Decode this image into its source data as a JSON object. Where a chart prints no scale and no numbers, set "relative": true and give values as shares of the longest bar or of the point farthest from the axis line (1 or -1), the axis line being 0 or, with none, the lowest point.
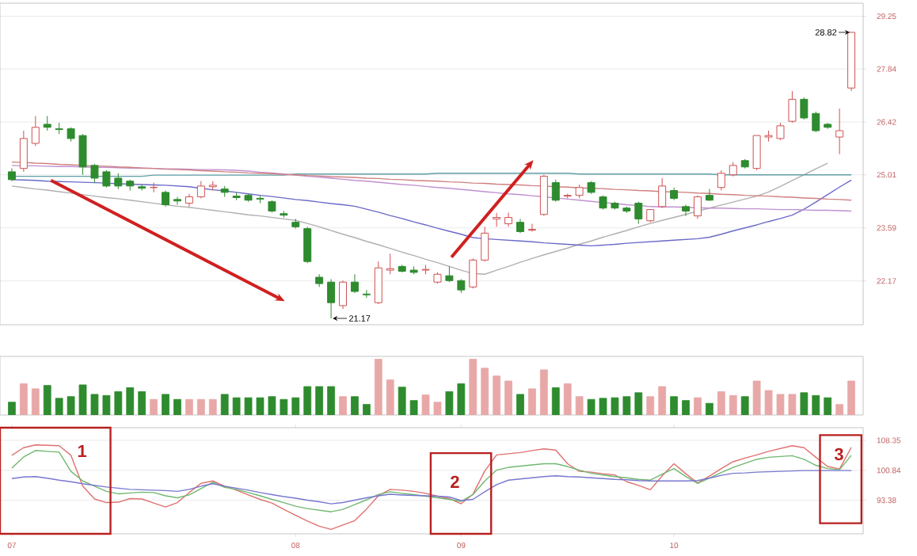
{
  "chart_data": [
    {
      "type": "candlestick",
      "categories": [
        "07",
        null,
        null,
        null,
        null,
        null,
        null,
        null,
        null,
        null,
        null,
        null,
        null,
        null,
        null,
        null,
        null,
        null,
        null,
        null,
        null,
        null,
        null,
        null,
        "08",
        null,
        null,
        null,
        null,
        null,
        null,
        null,
        null,
        null,
        null,
        null,
        null,
        null,
        "09",
        null,
        null,
        null,
        null,
        null,
        null,
        null,
        null,
        null,
        null,
        null,
        null,
        null,
        null,
        null,
        null,
        null,
        "10",
        null,
        null,
        null,
        null,
        null,
        null,
        null,
        null,
        null,
        null,
        null,
        null,
        null,
        null,
        null
      ],
      "ohlc": [
        [
          25.09,
          25.18,
          24.84,
          24.88
        ],
        [
          25.18,
          26.19,
          25.09,
          25.98
        ],
        [
          25.85,
          26.58,
          25.78,
          26.28
        ],
        [
          26.36,
          26.58,
          26.19,
          26.28
        ],
        [
          26.24,
          26.4,
          26.1,
          26.22
        ],
        [
          26.24,
          26.28,
          25.9,
          25.98
        ],
        [
          26.06,
          26.1,
          25.01,
          25.22
        ],
        [
          25.26,
          25.3,
          24.8,
          24.92
        ],
        [
          25.09,
          25.13,
          24.67,
          24.71
        ],
        [
          24.92,
          25.05,
          24.63,
          24.71
        ],
        [
          24.84,
          24.88,
          24.59,
          24.71
        ],
        [
          24.69,
          24.75,
          24.59,
          24.65
        ],
        [
          24.67,
          24.8,
          24.54,
          24.67
        ],
        [
          24.54,
          24.59,
          24.16,
          24.21
        ],
        [
          24.35,
          24.42,
          24.21,
          24.31
        ],
        [
          24.25,
          24.5,
          24.16,
          24.42
        ],
        [
          24.42,
          24.84,
          24.38,
          24.71
        ],
        [
          24.69,
          24.84,
          24.59,
          24.73
        ],
        [
          24.63,
          24.71,
          24.42,
          24.54
        ],
        [
          24.44,
          24.54,
          24.33,
          24.4
        ],
        [
          24.46,
          24.5,
          24.29,
          24.33
        ],
        [
          24.38,
          24.46,
          24.25,
          24.36
        ],
        [
          24.29,
          24.33,
          24.0,
          24.04
        ],
        [
          23.97,
          24.04,
          23.87,
          23.93
        ],
        [
          23.74,
          23.83,
          23.57,
          23.62
        ],
        [
          23.57,
          23.62,
          22.65,
          22.69
        ],
        [
          22.27,
          22.35,
          22.01,
          22.1
        ],
        [
          22.14,
          22.22,
          21.17,
          21.59
        ],
        [
          21.51,
          22.18,
          21.42,
          22.14
        ],
        [
          22.14,
          22.35,
          21.85,
          21.89
        ],
        [
          21.82,
          21.93,
          21.72,
          21.8
        ],
        [
          21.59,
          22.69,
          21.55,
          22.52
        ],
        [
          22.46,
          22.9,
          22.35,
          22.5
        ],
        [
          22.56,
          22.6,
          22.4,
          22.43
        ],
        [
          22.46,
          22.56,
          22.35,
          22.4
        ],
        [
          22.46,
          22.6,
          22.35,
          22.48
        ],
        [
          22.14,
          22.4,
          22.1,
          22.35
        ],
        [
          22.31,
          22.56,
          22.14,
          22.18
        ],
        [
          22.18,
          22.22,
          21.85,
          21.93
        ],
        [
          22.01,
          22.77,
          21.97,
          22.73
        ],
        [
          22.73,
          23.62,
          22.69,
          23.45
        ],
        [
          23.83,
          23.99,
          23.62,
          23.87
        ],
        [
          23.7,
          24.0,
          23.62,
          23.87
        ],
        [
          23.74,
          23.83,
          23.45,
          23.49
        ],
        [
          23.53,
          23.7,
          23.49,
          23.55
        ],
        [
          23.95,
          25.01,
          23.91,
          24.97
        ],
        [
          24.8,
          24.88,
          24.29,
          24.33
        ],
        [
          24.44,
          24.5,
          24.38,
          24.46
        ],
        [
          24.46,
          24.75,
          24.38,
          24.67
        ],
        [
          24.8,
          24.84,
          24.5,
          24.54
        ],
        [
          24.42,
          24.46,
          24.08,
          24.12
        ],
        [
          24.25,
          24.29,
          24.08,
          24.12
        ],
        [
          24.12,
          24.16,
          23.99,
          24.04
        ],
        [
          24.25,
          24.29,
          23.7,
          23.83
        ],
        [
          23.78,
          24.08,
          23.74,
          24.08
        ],
        [
          24.16,
          24.92,
          24.12,
          24.71
        ],
        [
          24.59,
          24.67,
          24.33,
          24.38
        ],
        [
          24.16,
          24.21,
          23.91,
          24.04
        ],
        [
          23.91,
          24.46,
          23.83,
          24.42
        ],
        [
          24.46,
          24.63,
          24.31,
          24.33
        ],
        [
          24.67,
          25.13,
          24.59,
          25.05
        ],
        [
          25.01,
          25.35,
          24.97,
          25.26
        ],
        [
          25.39,
          25.43,
          25.18,
          25.22
        ],
        [
          25.18,
          26.06,
          25.13,
          26.06
        ],
        [
          26.02,
          26.19,
          25.9,
          26.06
        ],
        [
          25.98,
          26.4,
          25.94,
          26.32
        ],
        [
          26.44,
          27.25,
          26.4,
          27.03
        ],
        [
          27.03,
          27.08,
          26.49,
          26.53
        ],
        [
          26.65,
          26.7,
          26.15,
          26.19
        ],
        [
          26.36,
          26.4,
          26.24,
          26.28
        ],
        [
          26.02,
          26.78,
          25.56,
          26.19
        ],
        [
          27.33,
          28.82,
          27.25,
          28.82
        ]
      ],
      "series": [
        {
          "type": "line",
          "color": "#b0b0b0",
          "values": [
            24.71,
            24.67,
            24.63,
            24.6,
            24.56,
            24.52,
            24.48,
            24.44,
            24.4,
            24.37,
            24.33,
            24.29,
            24.25,
            24.21,
            24.17,
            24.14,
            24.1,
            24.06,
            24.02,
            23.98,
            23.94,
            23.91,
            23.87,
            23.83,
            23.79,
            23.71,
            23.62,
            23.52,
            23.42,
            23.33,
            23.23,
            23.14,
            23.04,
            22.94,
            22.85,
            22.75,
            22.66,
            22.56,
            22.46,
            22.37,
            22.35,
            22.46,
            22.56,
            22.67,
            22.77,
            22.87,
            22.96,
            23.05,
            23.15,
            23.24,
            23.34,
            23.43,
            23.52,
            23.62,
            23.71,
            23.79,
            23.87,
            23.95,
            24.04,
            24.12,
            24.2,
            24.28,
            24.36,
            24.44,
            24.55,
            24.7,
            24.86,
            25.01,
            25.17,
            25.32,
            null,
            null
          ]
        },
        {
          "type": "line",
          "color": "#6a6ac8",
          "values": [
            24.88,
            24.87,
            24.86,
            24.84,
            24.83,
            24.82,
            24.81,
            24.8,
            24.79,
            24.77,
            24.76,
            24.75,
            24.74,
            24.73,
            24.71,
            24.69,
            24.65,
            24.61,
            24.58,
            24.54,
            24.5,
            24.46,
            24.43,
            24.39,
            24.35,
            24.32,
            24.28,
            24.24,
            24.21,
            24.17,
            24.09,
            24.01,
            23.92,
            23.84,
            23.75,
            23.67,
            23.58,
            23.5,
            23.42,
            23.33,
            23.3,
            23.28,
            23.26,
            23.24,
            23.22,
            23.19,
            23.17,
            23.15,
            23.13,
            23.11,
            23.13,
            23.15,
            23.18,
            23.2,
            23.22,
            23.24,
            23.26,
            23.28,
            23.3,
            23.34,
            23.42,
            23.51,
            23.59,
            23.67,
            23.76,
            23.84,
            23.93,
            24.09,
            24.28,
            24.48,
            24.68,
            24.87
          ]
        },
        {
          "type": "line",
          "color": "#c090d0",
          "values": [
            25.26,
            25.25,
            25.25,
            25.24,
            25.23,
            25.23,
            25.22,
            25.21,
            25.21,
            25.2,
            25.19,
            25.19,
            25.18,
            25.17,
            25.17,
            25.16,
            25.15,
            25.15,
            25.14,
            25.13,
            25.11,
            25.08,
            25.06,
            25.03,
            25.0,
            24.97,
            24.95,
            24.92,
            24.89,
            24.86,
            24.84,
            24.81,
            24.78,
            24.75,
            24.73,
            24.7,
            24.67,
            24.65,
            24.62,
            24.59,
            24.56,
            24.53,
            24.5,
            24.48,
            24.45,
            24.42,
            24.39,
            24.36,
            24.33,
            24.3,
            24.27,
            24.24,
            24.21,
            24.19,
            24.16,
            24.15,
            24.15,
            24.14,
            24.13,
            24.12,
            24.12,
            24.11,
            24.1,
            24.1,
            24.09,
            24.08,
            24.08,
            24.07,
            24.06,
            24.06,
            24.05,
            24.04
          ]
        },
        {
          "type": "line",
          "color": "#60a0a8",
          "values": [
            24.97,
            24.97,
            24.97,
            24.97,
            24.97,
            24.97,
            24.97,
            24.97,
            24.97,
            24.97,
            24.97,
            24.97,
            25.0,
            25.0,
            25.0,
            25.0,
            25.0,
            25.0,
            25.0,
            25.0,
            25.0,
            25.0,
            25.0,
            25.0,
            25.03,
            25.03,
            25.03,
            25.03,
            25.03,
            25.03,
            25.03,
            25.03,
            25.03,
            25.03,
            25.03,
            25.03,
            25.05,
            25.05,
            25.05,
            25.05,
            25.05,
            25.05,
            25.05,
            25.05,
            25.05,
            25.05,
            25.05,
            25.05,
            25.03,
            25.03,
            25.03,
            25.03,
            25.03,
            25.03,
            25.03,
            25.03,
            25.03,
            25.03,
            25.03,
            25.03,
            25.01,
            25.01,
            25.01,
            25.01,
            25.01,
            25.01,
            25.01,
            25.01,
            25.01,
            25.01,
            25.01,
            25.01
          ]
        },
        {
          "type": "line",
          "color": "#d08080",
          "values": [
            25.35,
            25.34,
            25.32,
            25.31,
            25.29,
            25.28,
            25.26,
            25.25,
            25.24,
            25.22,
            25.21,
            25.19,
            25.18,
            25.16,
            25.15,
            25.14,
            25.12,
            25.11,
            25.09,
            25.08,
            25.06,
            25.05,
            25.04,
            25.02,
            25.01,
            24.99,
            24.98,
            24.96,
            24.95,
            24.94,
            24.92,
            24.91,
            24.89,
            24.88,
            24.86,
            24.85,
            24.84,
            24.82,
            24.81,
            24.79,
            24.78,
            24.76,
            24.75,
            24.74,
            24.72,
            24.71,
            24.69,
            24.68,
            24.66,
            24.65,
            24.64,
            24.62,
            24.61,
            24.59,
            24.58,
            24.56,
            24.55,
            24.54,
            24.52,
            24.51,
            24.49,
            24.48,
            24.46,
            24.45,
            24.44,
            24.42,
            24.41,
            24.39,
            24.38,
            24.36,
            24.35,
            24.33
          ]
        }
      ],
      "ylim": [
        21.0,
        29.6
      ],
      "yticks": [
        22.17,
        23.59,
        25.01,
        26.42,
        27.84,
        29.25
      ],
      "grid": "y",
      "tick_labels": "y",
      "annotations": [
        "21.17",
        "28.82"
      ]
    },
    {
      "type": "bar",
      "categories": [
        "07",
        null,
        null,
        null,
        null,
        null,
        null,
        null,
        null,
        null,
        null,
        null,
        null,
        null,
        null,
        null,
        null,
        null,
        null,
        null,
        null,
        null,
        null,
        null,
        "08",
        null,
        null,
        null,
        null,
        null,
        null,
        null,
        null,
        null,
        null,
        null,
        null,
        null,
        "09",
        null,
        null,
        null,
        null,
        null,
        null,
        null,
        null,
        null,
        null,
        null,
        null,
        null,
        null,
        null,
        null,
        null,
        "10",
        null,
        null,
        null,
        null,
        null,
        null,
        null,
        null,
        null,
        null,
        null,
        null,
        null,
        null,
        null
      ],
      "relative": true,
      "tick_labels": false,
      "values": [
        0.23,
        0.56,
        0.47,
        0.53,
        0.3,
        0.33,
        0.54,
        0.37,
        0.35,
        0.42,
        0.49,
        0.42,
        0.28,
        0.37,
        0.28,
        0.28,
        0.28,
        0.28,
        0.37,
        0.31,
        0.31,
        0.31,
        0.33,
        0.28,
        0.31,
        0.51,
        0.51,
        0.51,
        0.33,
        0.33,
        0.19,
        1,
        0.63,
        0.5,
        0.26,
        0.36,
        0.23,
        0.42,
        0.56,
        1,
        0.84,
        0.7,
        0.61,
        0.37,
        0.47,
        0.81,
        0.49,
        0.56,
        0.33,
        0.28,
        0.3,
        0.31,
        0.33,
        0.4,
        0.33,
        0.51,
        0.33,
        0.26,
        0.31,
        0.21,
        0.42,
        0.35,
        0.33,
        0.61,
        0.44,
        0.37,
        0.37,
        0.4,
        0.35,
        0.31,
        0.19,
        0.61
      ],
      "colors": [
        "#2e8b2e",
        "#e8a8a8",
        "#e8a8a8",
        "#2e8b2e",
        "#2e8b2e",
        "#2e8b2e",
        "#2e8b2e",
        "#2e8b2e",
        "#2e8b2e",
        "#2e8b2e",
        "#2e8b2e",
        "#2e8b2e",
        "#e8a8a8",
        "#2e8b2e",
        "#2e8b2e",
        "#e8a8a8",
        "#e8a8a8",
        "#e8a8a8",
        "#2e8b2e",
        "#2e8b2e",
        "#2e8b2e",
        "#2e8b2e",
        "#2e8b2e",
        "#2e8b2e",
        "#2e8b2e",
        "#2e8b2e",
        "#2e8b2e",
        "#2e8b2e",
        "#e8a8a8",
        "#2e8b2e",
        "#2e8b2e",
        "#e8a8a8",
        "#e8a8a8",
        "#2e8b2e",
        "#2e8b2e",
        "#e8a8a8",
        "#e8a8a8",
        "#2e8b2e",
        "#2e8b2e",
        "#e8a8a8",
        "#e8a8a8",
        "#e8a8a8",
        "#e8a8a8",
        "#2e8b2e",
        "#e8a8a8",
        "#e8a8a8",
        "#2e8b2e",
        "#e8a8a8",
        "#e8a8a8",
        "#2e8b2e",
        "#2e8b2e",
        "#2e8b2e",
        "#2e8b2e",
        "#2e8b2e",
        "#e8a8a8",
        "#e8a8a8",
        "#2e8b2e",
        "#2e8b2e",
        "#e8a8a8",
        "#2e8b2e",
        "#e8a8a8",
        "#e8a8a8",
        "#2e8b2e",
        "#e8a8a8",
        "#e8a8a8",
        "#e8a8a8",
        "#e8a8a8",
        "#2e8b2e",
        "#2e8b2e",
        "#2e8b2e",
        "#e8a8a8",
        "#e8a8a8"
      ]
    },
    {
      "type": "line",
      "categories": [
        "07",
        null,
        null,
        null,
        null,
        null,
        null,
        null,
        null,
        null,
        null,
        null,
        null,
        null,
        null,
        null,
        null,
        null,
        null,
        null,
        null,
        null,
        null,
        null,
        "08",
        null,
        null,
        null,
        null,
        null,
        null,
        null,
        null,
        null,
        null,
        null,
        null,
        null,
        "09",
        null,
        null,
        null,
        null,
        null,
        null,
        null,
        null,
        null,
        null,
        null,
        null,
        null,
        null,
        null,
        null,
        null,
        "10",
        null,
        null,
        null,
        null,
        null,
        null,
        null,
        null,
        null,
        null,
        null,
        null,
        null,
        null,
        null
      ],
      "ylim": [
        85,
        111.5
      ],
      "yticks": [
        108.35,
        100.84,
        93.38
      ],
      "grid": "y",
      "series": [
        {
          "color": "#e07070",
          "values": [
            104.6,
            106.5,
            107.2,
            107.1,
            107.0,
            104.6,
            96.9,
            93.7,
            92.8,
            92.9,
            93.8,
            93.7,
            92.7,
            91.7,
            92.8,
            95.3,
            97.6,
            98.2,
            96.9,
            95.9,
            94.7,
            93.6,
            92.7,
            91.1,
            89.6,
            88.2,
            86.9,
            86.1,
            87.2,
            88.3,
            91.2,
            94.5,
            96.1,
            95.9,
            95.6,
            95.1,
            94.4,
            93.8,
            92.5,
            94.9,
            100.7,
            104.7,
            105.0,
            105.3,
            105.8,
            106.2,
            105.9,
            102.5,
            100.6,
            100.4,
            100.0,
            99.7,
            98.0,
            97.1,
            96.0,
            99.5,
            102.5,
            100.0,
            97.7,
            99.4,
            101.3,
            103.0,
            103.9,
            104.7,
            105.6,
            106.3,
            107.0,
            106.5,
            104.1,
            101.8,
            101.2,
            106.6
          ]
        },
        {
          "color": "#70b870",
          "values": [
            101.4,
            104.2,
            105.8,
            105.6,
            105.4,
            100.6,
            98.2,
            96.9,
            95.6,
            95.0,
            95.2,
            95.4,
            95.3,
            94.5,
            94.0,
            94.7,
            96.3,
            97.9,
            96.6,
            96.1,
            95.3,
            94.5,
            93.6,
            92.8,
            91.9,
            91.3,
            90.9,
            90.5,
            91.1,
            92.3,
            93.5,
            94.8,
            95.5,
            95.1,
            94.8,
            94.4,
            94.0,
            93.6,
            93.1,
            94.8,
            98.2,
            100.9,
            101.6,
            101.9,
            102.2,
            102.5,
            102.5,
            101.8,
            100.9,
            100.1,
            99.7,
            99.3,
            99.0,
            98.6,
            98.4,
            99.9,
            101.3,
            99.3,
            97.6,
            98.9,
            100.3,
            101.6,
            102.6,
            103.6,
            104.1,
            104.3,
            104.5,
            103.6,
            102.1,
            101.3,
            101.0,
            104.6
          ]
        },
        {
          "color": "#7878d0",
          "values": [
            98.8,
            99.2,
            99.3,
            98.9,
            98.4,
            98.0,
            97.5,
            97.1,
            96.7,
            96.4,
            96.1,
            96.0,
            95.9,
            95.8,
            95.6,
            96.1,
            96.9,
            97.5,
            96.9,
            96.4,
            95.9,
            95.3,
            94.8,
            94.3,
            93.9,
            93.4,
            93.0,
            92.5,
            92.8,
            93.4,
            94.0,
            94.5,
            94.9,
            94.7,
            94.6,
            94.5,
            94.4,
            94.2,
            93.3,
            93.6,
            95.5,
            97.3,
            98.4,
            98.7,
            99.0,
            99.3,
            99.5,
            99.3,
            99.2,
            99.0,
            98.8,
            98.6,
            98.5,
            98.3,
            98.2,
            98.2,
            98.2,
            98.2,
            98.3,
            98.9,
            99.6,
            100.1,
            100.2,
            100.4,
            100.5,
            100.6,
            100.7,
            100.8,
            100.8,
            100.8,
            100.8,
            100.8
          ]
        }
      ],
      "annotations": [
        "1",
        "2",
        "3"
      ]
    }
  ]
}
